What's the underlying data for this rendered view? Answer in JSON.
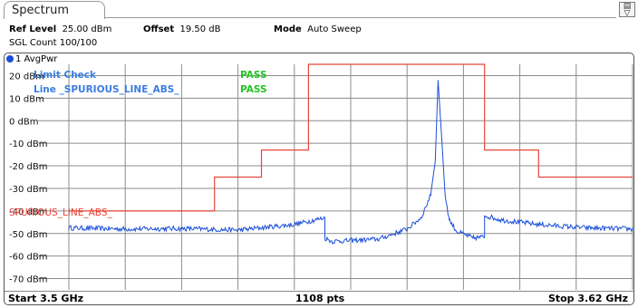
{
  "tab": {
    "title": "Spectrum"
  },
  "header": {
    "ref_level_label": "Ref Level",
    "ref_level_value": "25.00 dBm",
    "offset_label": "Offset",
    "offset_value": "19.50 dB",
    "mode_label": "Mode",
    "mode_value": "Auto Sweep",
    "sgl_count": "SGL Count 100/100"
  },
  "trace": {
    "label": "1 AvgPwr",
    "color": "#1a4fd8"
  },
  "limit_check": {
    "title": "Limit Check",
    "title_status": "PASS",
    "line_label": "Line _SPURIOUS_LINE_ABS_",
    "line_status": "PASS",
    "label_color": "#3a7de0",
    "pass_color": "#22c322"
  },
  "limit_line_label": "SPURIOUS_LINE_ABS_",
  "limit_color": "#e8463a",
  "footer": {
    "start": "Start 3.5 GHz",
    "points": "1108 pts",
    "stop": "Stop 3.62 GHz"
  },
  "chart_data": {
    "type": "line",
    "y_tick_labels": [
      "20 dBm",
      "10 dBm",
      "0 dBm",
      "-10 dBm",
      "-20 dBm",
      "-30 dBm",
      "-40 dBm",
      "-50 dBm",
      "-60 dBm",
      "-70 dBm"
    ],
    "y_ticks": [
      20,
      10,
      0,
      -10,
      -20,
      -30,
      -40,
      -50,
      -60,
      -70
    ],
    "ylim": [
      -75,
      25
    ],
    "xlim": [
      3.5,
      3.62
    ],
    "x_unit": "GHz",
    "grid": true,
    "series": [
      {
        "color": "#1a4fd8",
        "x": [
          3.5,
          3.512,
          3.524,
          3.536,
          3.548,
          3.5545,
          3.5545,
          3.556,
          3.566,
          3.572,
          3.575,
          3.577,
          3.578,
          3.5786,
          3.5795,
          3.5801,
          3.581,
          3.5825,
          3.586,
          3.5885,
          3.5885,
          3.592,
          3.6,
          3.61,
          3.62
        ],
        "y": [
          -47.5,
          -48,
          -47.8,
          -48.5,
          -46,
          -43,
          -52,
          -53.5,
          -52.5,
          -48,
          -43,
          -33,
          -18,
          18,
          -12,
          -33,
          -44,
          -49,
          -52,
          -51.5,
          -42,
          -44,
          -46,
          -47.5,
          -48
        ]
      }
    ],
    "limit_line": {
      "color": "#e8463a",
      "x": [
        3.5,
        3.531,
        3.531,
        3.541,
        3.541,
        3.551,
        3.551,
        3.5885,
        3.5885,
        3.6,
        3.6,
        3.62
      ],
      "y": [
        -40,
        -40,
        -25,
        -25,
        -13,
        -13,
        30,
        30,
        -13,
        -13,
        -25,
        -25
      ]
    }
  }
}
